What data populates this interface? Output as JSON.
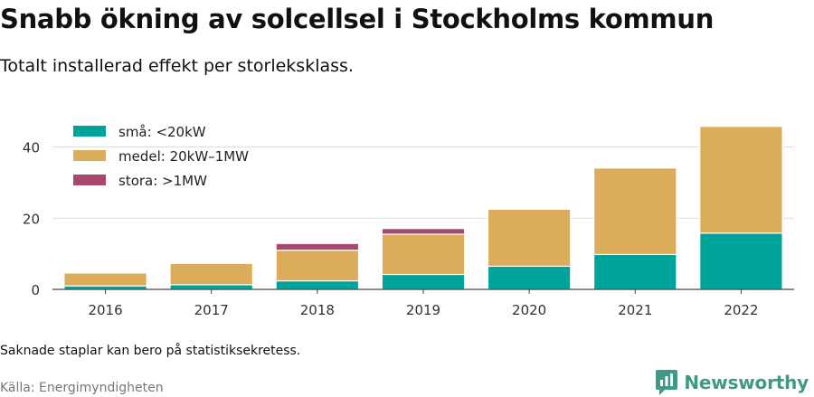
{
  "title": "Snabb ökning av solcellsel i Stockholms kommun",
  "subtitle": "Totalt installerad effekt per storleksklass.",
  "note": "Saknade staplar kan bero på statistiksekretess.",
  "source": "Källa: Energimyndigheten",
  "brand": {
    "name": "Newsworthy",
    "color": "#3e9a86",
    "icon": "newsworthy-logo-icon"
  },
  "chart_data": {
    "type": "bar",
    "stacked": true,
    "categories": [
      "2016",
      "2017",
      "2018",
      "2019",
      "2020",
      "2021",
      "2022"
    ],
    "series": [
      {
        "name": "små: <20kW",
        "color": "#00a39a",
        "values": [
          1.0,
          1.3,
          2.4,
          4.2,
          6.5,
          9.8,
          15.8
        ]
      },
      {
        "name": "medel: 20kW–1MW",
        "color": "#dbad5a",
        "values": [
          3.6,
          6.0,
          8.6,
          11.3,
          16.0,
          24.3,
          30.0
        ]
      },
      {
        "name": "stora: >1MW",
        "color": "#a8486f",
        "values": [
          0,
          0,
          1.9,
          1.6,
          0,
          0,
          0
        ]
      }
    ],
    "yticks": [
      0,
      20,
      40
    ],
    "ylim": [
      0,
      47
    ],
    "grid": true,
    "legend": "top-left"
  }
}
